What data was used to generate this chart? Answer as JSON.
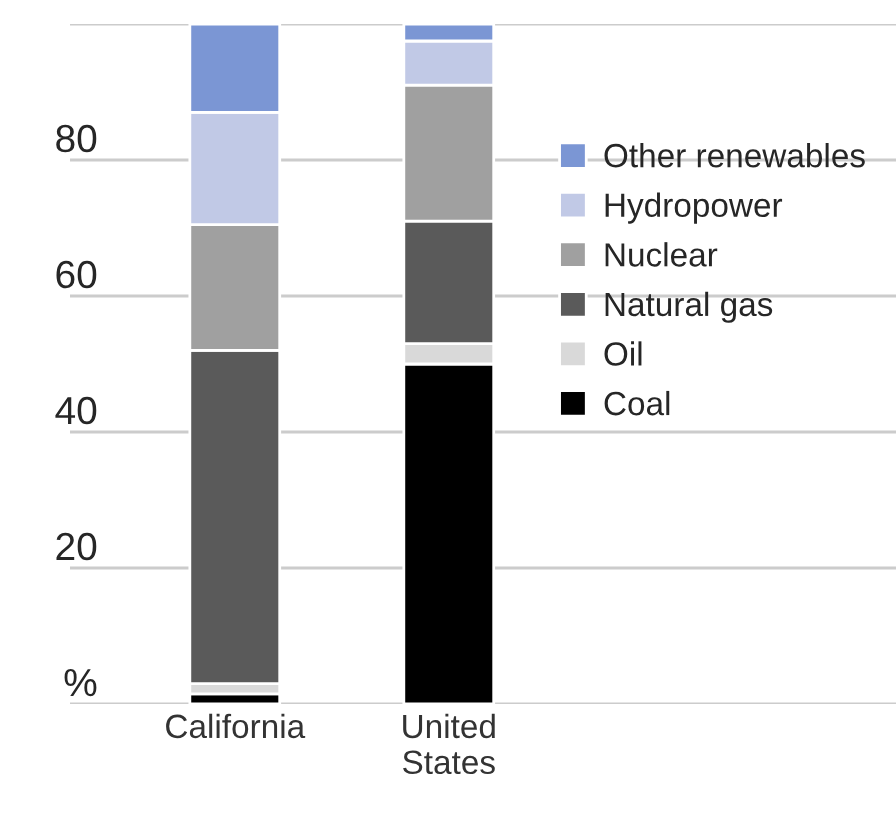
{
  "chart_data": {
    "type": "bar",
    "stacked": true,
    "categories": [
      "California",
      "United\nStates"
    ],
    "series": [
      {
        "name": "Coal",
        "color": "#000000",
        "values": [
          1.5,
          50
        ]
      },
      {
        "name": "Oil",
        "color": "#d9d9d9",
        "values": [
          1.5,
          3
        ]
      },
      {
        "name": "Natural gas",
        "color": "#5a5a5a",
        "values": [
          49,
          18
        ]
      },
      {
        "name": "Nuclear",
        "color": "#a0a0a0",
        "values": [
          18.5,
          20
        ]
      },
      {
        "name": "Hydropower",
        "color": "#c1c9e6",
        "values": [
          16.5,
          6.5
        ]
      },
      {
        "name": "Other renewables",
        "color": "#7b96d4",
        "values": [
          13,
          2.5
        ]
      }
    ],
    "ylim": [
      0,
      100
    ],
    "yticks": [
      {
        "value": 0,
        "label": "%"
      },
      20,
      40,
      60,
      80,
      {
        "value": 100,
        "label": null
      }
    ],
    "grid": "y",
    "legend": "right"
  }
}
